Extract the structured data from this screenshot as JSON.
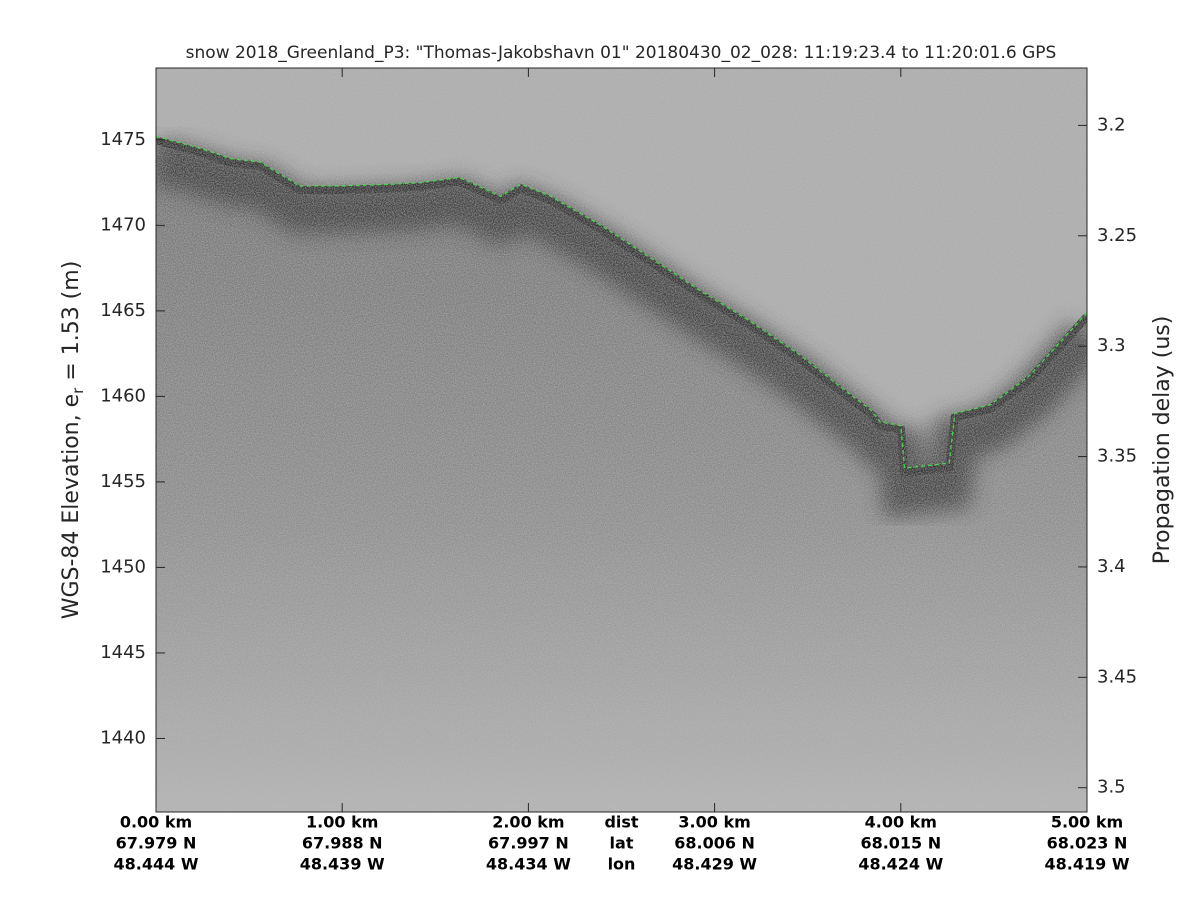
{
  "chart_data": {
    "type": "echogram",
    "title": "snow 2018_Greenland_P3: \"Thomas-Jakobshavn 01\"  20180430_02_028: 11:19:23.4 to 11:20:01.6 GPS",
    "ylabel_parts": [
      "WGS-84 Elevation, e",
      "r",
      " = 1.53 (m)"
    ],
    "y2label": "Propagation delay (us)",
    "xlim": [
      0,
      5
    ],
    "xticks": [
      {
        "value": 0,
        "label": "0.00 km"
      },
      {
        "value": 1,
        "label": "1.00 km"
      },
      {
        "value": 2,
        "label": "2.00 km"
      },
      {
        "value": 3,
        "label": "3.00 km"
      },
      {
        "value": 4,
        "label": "4.00 km"
      },
      {
        "value": 5,
        "label": "5.00 km"
      }
    ],
    "lat_labels": [
      "67.979 N",
      "67.988 N",
      "67.997 N",
      "68.006 N",
      "68.015 N",
      "68.023 N"
    ],
    "lon_labels": [
      "48.444 W",
      "48.439 W",
      "48.434 W",
      "48.429 W",
      "48.424 W",
      "48.419 W"
    ],
    "row_labels": [
      "dist",
      "lat",
      "lon"
    ],
    "ylim": [
      1435.7,
      1479.2
    ],
    "yticks": [
      1440,
      1445,
      1450,
      1455,
      1460,
      1465,
      1470,
      1475
    ],
    "y2lim": [
      3.511,
      3.174
    ],
    "y2ticks": [
      3.2,
      3.25,
      3.3,
      3.35,
      3.4,
      3.45,
      3.5
    ],
    "surface": {
      "color": "#22dd22",
      "line_style": "dashed",
      "x": [
        0,
        0.24,
        0.4,
        0.56,
        0.77,
        0.99,
        1.26,
        1.42,
        1.63,
        1.85,
        1.96,
        2.12,
        2.39,
        2.6,
        2.92,
        3.19,
        3.46,
        3.67,
        3.84,
        3.89,
        4.0,
        4.02,
        4.26,
        4.29,
        4.48,
        4.69,
        5.0
      ],
      "values": [
        1475.2,
        1474.5,
        1473.9,
        1473.7,
        1472.3,
        1472.3,
        1472.4,
        1472.5,
        1472.8,
        1471.7,
        1472.4,
        1471.7,
        1470.0,
        1468.5,
        1466.2,
        1464.4,
        1462.4,
        1460.6,
        1459.2,
        1458.5,
        1458.3,
        1455.8,
        1456.1,
        1459.0,
        1459.5,
        1461.2,
        1464.9
      ]
    }
  }
}
